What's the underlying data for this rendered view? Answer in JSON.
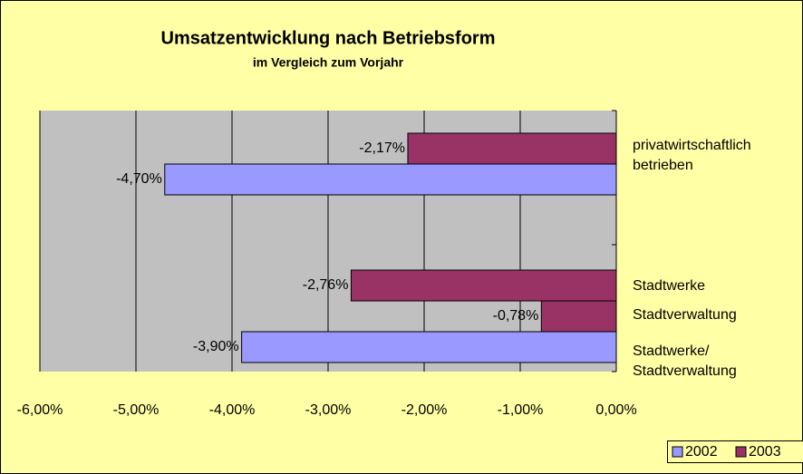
{
  "chart_data": {
    "type": "bar",
    "orientation": "horizontal",
    "title": "Umsatzentwicklung nach Betriebsform",
    "subtitle": "im Vergleich zum Vorjahr",
    "categories": [
      "privatwirtschaftlich betrieben",
      "Stadtwerke",
      "Stadtverwaltung",
      "Stadtwerke/ Stadtverwaltung"
    ],
    "series": [
      {
        "name": "2002",
        "color": "#9999ff",
        "values": [
          -4.7,
          null,
          null,
          -3.9
        ],
        "value_labels": [
          "-4,70%",
          null,
          null,
          "-3,90%"
        ]
      },
      {
        "name": "2003",
        "color": "#993366",
        "values": [
          -2.17,
          -2.76,
          -0.78,
          null
        ],
        "value_labels": [
          "-2,17%",
          "-2,76%",
          "-0,78%",
          null
        ]
      }
    ],
    "xlim": [
      -6,
      0
    ],
    "xticks": [
      {
        "value": -6,
        "label": "-6,00%"
      },
      {
        "value": -5,
        "label": "-5,00%"
      },
      {
        "value": -4,
        "label": "-4,00%"
      },
      {
        "value": -3,
        "label": "-3,00%"
      },
      {
        "value": -2,
        "label": "-2,00%"
      },
      {
        "value": -1,
        "label": "-1,00%"
      },
      {
        "value": 0,
        "label": "0,00%"
      }
    ],
    "grid": true,
    "legend": "bottom-right"
  }
}
